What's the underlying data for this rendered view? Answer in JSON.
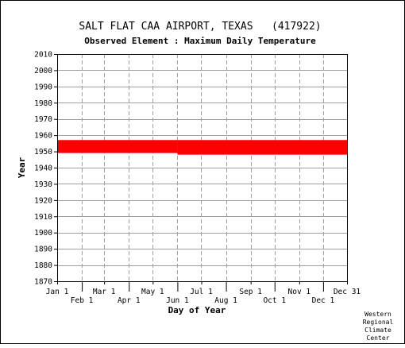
{
  "header": {
    "title": "SALT FLAT CAA AIRPORT, TEXAS   (417922)",
    "subtitle": "Observed Element : Maximum Daily Temperature"
  },
  "credit": [
    "Western",
    "Regional",
    "Climate",
    "Center"
  ],
  "chart_data": {
    "type": "bar",
    "title": "SALT FLAT CAA AIRPORT, TEXAS   (417922)",
    "subtitle": "Observed Element : Maximum Daily Temperature",
    "xlabel": "Day of Year",
    "ylabel": "Year",
    "ylim": [
      1870,
      2010
    ],
    "xlim": [
      1,
      365
    ],
    "grid": true,
    "y_ticks": [
      1870,
      1880,
      1890,
      1900,
      1910,
      1920,
      1930,
      1940,
      1950,
      1960,
      1970,
      1980,
      1990,
      2000,
      2010
    ],
    "x_ticks": [
      {
        "label": "Jan 1",
        "day": 1
      },
      {
        "label": "Feb 1",
        "day": 32
      },
      {
        "label": "Mar 1",
        "day": 60
      },
      {
        "label": "Apr 1",
        "day": 91
      },
      {
        "label": "May 1",
        "day": 121
      },
      {
        "label": "Jun 1",
        "day": 152
      },
      {
        "label": "Jul 1",
        "day": 182
      },
      {
        "label": "Aug 1",
        "day": 213
      },
      {
        "label": "Sep 1",
        "day": 244
      },
      {
        "label": "Oct 1",
        "day": 274
      },
      {
        "label": "Nov 1",
        "day": 305
      },
      {
        "label": "Dec 1",
        "day": 335
      },
      {
        "label": "Dec 31",
        "day": 365
      }
    ],
    "data_color": "#ff0000",
    "series": [
      {
        "day_start": 1,
        "day_end": 152,
        "year_start": 1949,
        "year_end": 1957
      },
      {
        "day_start": 152,
        "day_end": 365,
        "year_start": 1948,
        "year_end": 1957
      }
    ]
  }
}
